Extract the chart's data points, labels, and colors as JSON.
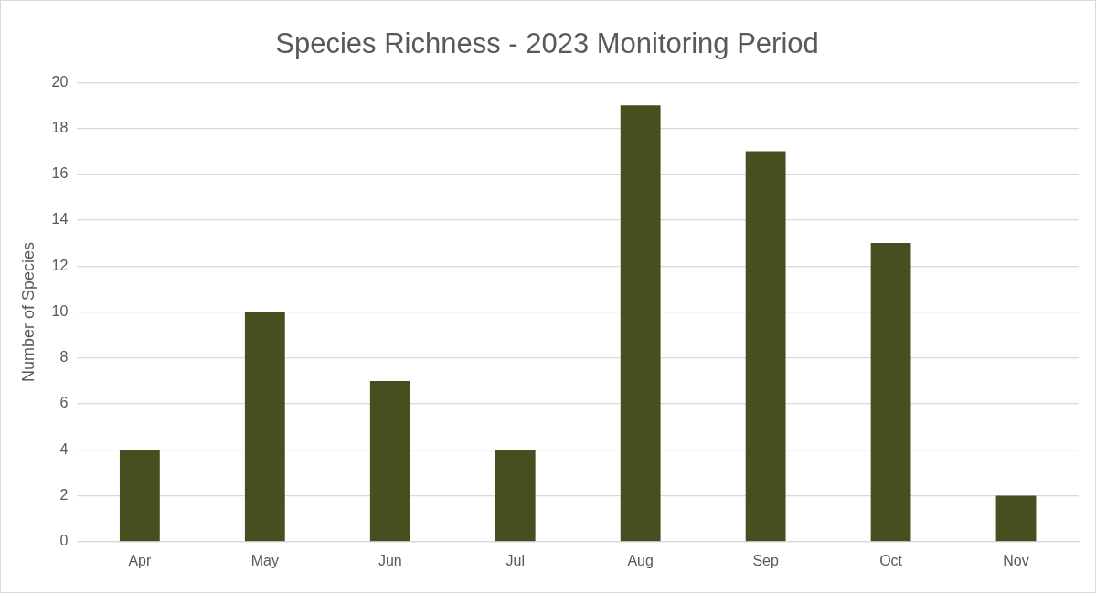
{
  "chart_data": {
    "type": "bar",
    "title": "Species Richness - 2023 Monitoring Period",
    "ylabel": "Number of Species",
    "categories": [
      "Apr",
      "May",
      "Jun",
      "Jul",
      "Aug",
      "Sep",
      "Oct",
      "Nov"
    ],
    "values": [
      4,
      10,
      7,
      4,
      19,
      17,
      13,
      2
    ],
    "color": "#474f21",
    "ylim": [
      0,
      20
    ],
    "yticks": [
      0,
      2,
      4,
      6,
      8,
      10,
      12,
      14,
      16,
      18,
      20
    ],
    "grid": "y",
    "legend": false
  }
}
